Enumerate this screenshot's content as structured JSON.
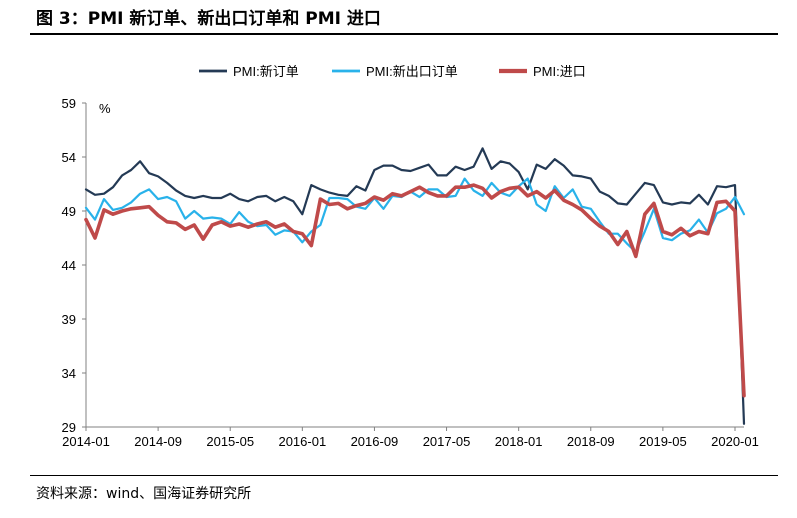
{
  "figure": {
    "title": "图 3：PMI 新订单、新出口订单和 PMI 进口",
    "source": "资料来源：wind、国海证券研究所"
  },
  "colors": {
    "series": [
      "#243a55",
      "#29b2ea",
      "#bf4a4a"
    ],
    "axis": "#808080",
    "text": "#000000"
  },
  "chart_data": {
    "type": "line",
    "title": "",
    "xlabel": "",
    "ylabel": "%",
    "ylim": [
      29,
      59
    ],
    "yticks": [
      29,
      34,
      39,
      44,
      49,
      54,
      59
    ],
    "xtick_labels": [
      "2014-01",
      "2014-09",
      "2015-05",
      "2016-01",
      "2016-09",
      "2017-05",
      "2018-01",
      "2018-09",
      "2019-05",
      "2020-01"
    ],
    "grid": false,
    "legend_position": "top-center",
    "x": [
      "2014-01",
      "2014-02",
      "2014-03",
      "2014-04",
      "2014-05",
      "2014-06",
      "2014-07",
      "2014-08",
      "2014-09",
      "2014-10",
      "2014-11",
      "2014-12",
      "2015-01",
      "2015-02",
      "2015-03",
      "2015-04",
      "2015-05",
      "2015-06",
      "2015-07",
      "2015-08",
      "2015-09",
      "2015-10",
      "2015-11",
      "2015-12",
      "2016-01",
      "2016-02",
      "2016-03",
      "2016-04",
      "2016-05",
      "2016-06",
      "2016-07",
      "2016-08",
      "2016-09",
      "2016-10",
      "2016-11",
      "2016-12",
      "2017-01",
      "2017-02",
      "2017-03",
      "2017-04",
      "2017-05",
      "2017-06",
      "2017-07",
      "2017-08",
      "2017-09",
      "2017-10",
      "2017-11",
      "2017-12",
      "2018-01",
      "2018-02",
      "2018-03",
      "2018-04",
      "2018-05",
      "2018-06",
      "2018-07",
      "2018-08",
      "2018-09",
      "2018-10",
      "2018-11",
      "2018-12",
      "2019-01",
      "2019-02",
      "2019-03",
      "2019-04",
      "2019-05",
      "2019-06",
      "2019-07",
      "2019-08",
      "2019-09",
      "2019-10",
      "2019-11",
      "2019-12",
      "2020-01",
      "2020-02"
    ],
    "series": [
      {
        "name": "PMI:新订单",
        "values": [
          51.0,
          50.5,
          50.6,
          51.2,
          52.3,
          52.8,
          53.6,
          52.5,
          52.2,
          51.6,
          50.9,
          50.4,
          50.2,
          50.4,
          50.2,
          50.2,
          50.6,
          50.1,
          49.9,
          50.3,
          50.4,
          49.9,
          50.3,
          49.9,
          48.7,
          51.4,
          51.0,
          50.7,
          50.5,
          50.4,
          51.3,
          50.9,
          52.8,
          53.2,
          53.2,
          52.8,
          52.7,
          53.0,
          53.3,
          52.3,
          52.3,
          53.1,
          52.8,
          53.1,
          54.8,
          52.9,
          53.6,
          53.4,
          52.6,
          51.0,
          53.3,
          52.9,
          53.8,
          53.2,
          52.3,
          52.2,
          52.0,
          50.8,
          50.4,
          49.7,
          49.6,
          50.6,
          51.6,
          51.4,
          49.8,
          49.6,
          49.8,
          49.7,
          50.5,
          49.6,
          51.3,
          51.2,
          51.4,
          29.3
        ]
      },
      {
        "name": "PMI:新出口订单",
        "values": [
          49.3,
          48.2,
          50.1,
          49.1,
          49.3,
          49.8,
          50.6,
          51.0,
          50.1,
          50.3,
          49.9,
          48.3,
          49.0,
          48.3,
          48.4,
          48.3,
          47.8,
          48.9,
          48.0,
          47.6,
          47.7,
          46.8,
          47.2,
          47.1,
          46.1,
          47.1,
          47.7,
          50.2,
          50.2,
          50.1,
          49.4,
          49.2,
          50.2,
          49.2,
          50.4,
          50.3,
          50.8,
          50.3,
          51.0,
          51.0,
          50.3,
          50.4,
          52.0,
          50.9,
          50.4,
          51.6,
          50.7,
          50.4,
          51.3,
          52.0,
          49.6,
          49.0,
          51.3,
          50.2,
          51.0,
          49.4,
          49.2,
          48.0,
          46.9,
          46.9,
          46.0,
          45.2,
          47.1,
          49.2,
          46.5,
          46.3,
          46.9,
          47.2,
          48.2,
          47.0,
          48.8,
          49.2,
          50.3,
          48.7
        ]
      },
      {
        "name": "PMI:进口",
        "values": [
          48.2,
          46.5,
          49.1,
          48.7,
          49.0,
          49.2,
          49.3,
          49.4,
          48.6,
          48.0,
          47.9,
          47.3,
          47.7,
          46.4,
          47.7,
          48.0,
          47.6,
          47.8,
          47.5,
          47.8,
          48.0,
          47.5,
          47.8,
          47.1,
          46.9,
          45.8,
          50.1,
          49.6,
          49.7,
          49.2,
          49.5,
          49.7,
          50.3,
          50.0,
          50.6,
          50.4,
          50.8,
          51.2,
          50.7,
          50.4,
          50.4,
          51.2,
          51.2,
          51.4,
          51.1,
          50.2,
          50.8,
          51.1,
          51.2,
          50.4,
          50.8,
          50.2,
          50.9,
          50.0,
          49.6,
          49.1,
          48.3,
          47.6,
          47.1,
          45.9,
          47.1,
          44.8,
          48.7,
          49.7,
          47.1,
          46.8,
          47.4,
          46.7,
          47.1,
          46.9,
          49.8,
          49.9,
          49.0,
          31.9
        ]
      }
    ]
  }
}
